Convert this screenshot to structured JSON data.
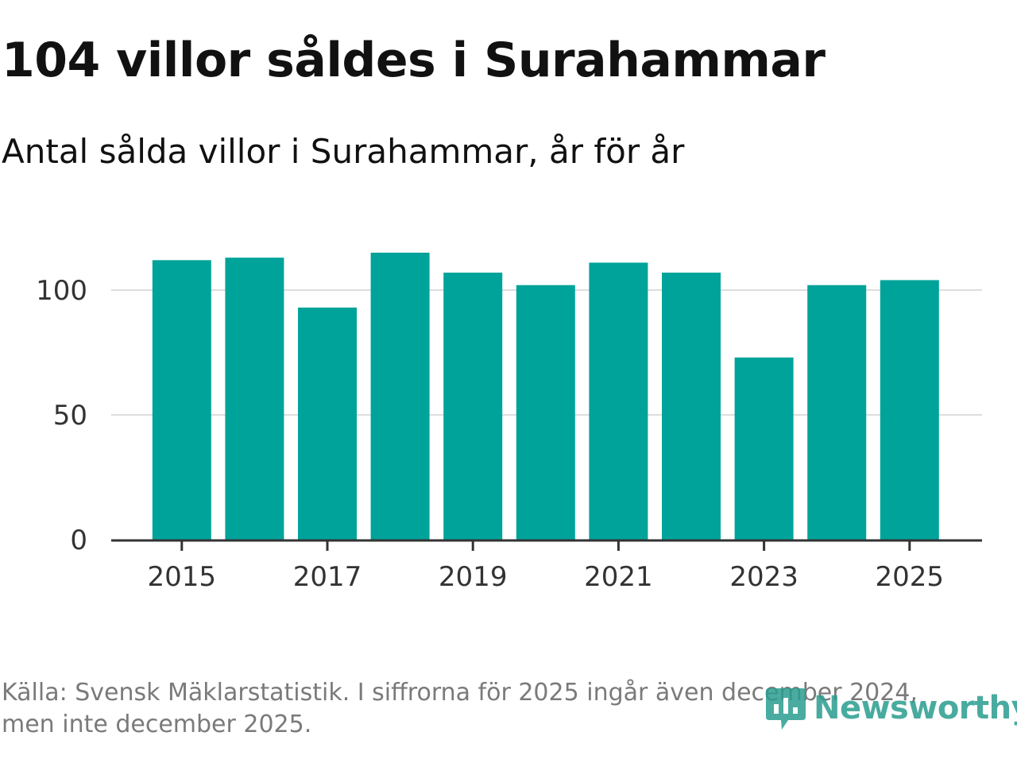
{
  "title": "104 villor såldes i Surahammar",
  "subtitle": "Antal sålda villor i Surahammar, år för år",
  "source_line1": "Källa: Svensk Mäklarstatistik. I siffrorna för 2025 ingår även december 2024,",
  "source_line2": "men inte december 2025.",
  "brand": {
    "name": "Newsworthy",
    "icon": "newsworthy-logo-icon"
  },
  "colors": {
    "bar": "#00a39a",
    "grid": "#dddddd",
    "axis": "#333333",
    "brand": "#2a9d8f"
  },
  "chart_data": {
    "type": "bar",
    "title": "Antal sålda villor i Surahammar, år för år",
    "xlabel": "",
    "ylabel": "",
    "categories": [
      "2015",
      "2016",
      "2017",
      "2018",
      "2019",
      "2020",
      "2021",
      "2022",
      "2023",
      "2024",
      "2025"
    ],
    "values": [
      112,
      113,
      93,
      115,
      107,
      102,
      111,
      107,
      73,
      102,
      104
    ],
    "ylim": [
      0,
      120
    ],
    "yticks": [
      0,
      50,
      100
    ],
    "xtick_labels": [
      "2015",
      "2017",
      "2019",
      "2021",
      "2023",
      "2025"
    ],
    "grid": true
  }
}
